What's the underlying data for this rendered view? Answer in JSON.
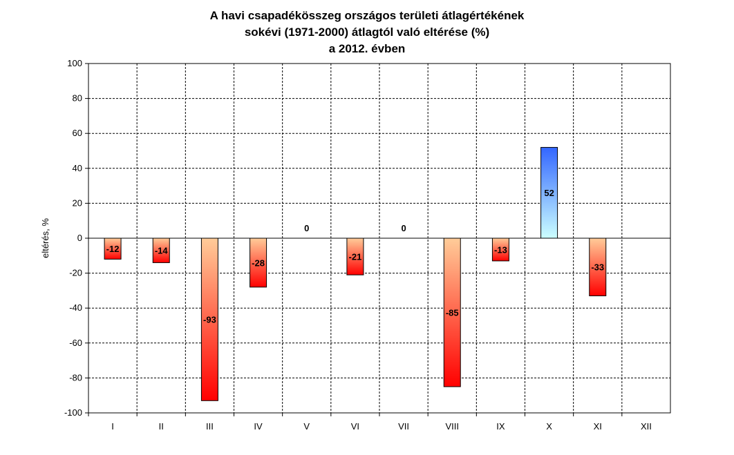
{
  "chart_data": {
    "type": "bar",
    "title": [
      "A havi csapadékösszeg országos területi átlagértékének",
      "sokévi (1971-2000) átlagtól való eltérése (%)",
      "a 2012. évben"
    ],
    "xlabel": "",
    "ylabel": "eltérés, %",
    "ylim": [
      -100,
      100
    ],
    "yticks": [
      100,
      80,
      60,
      40,
      20,
      0,
      -20,
      -40,
      -60,
      -80,
      -100
    ],
    "categories": [
      "I",
      "II",
      "III",
      "IV",
      "V",
      "VI",
      "VII",
      "VIII",
      "IX",
      "X",
      "XI",
      "XII"
    ],
    "values": [
      -12,
      -14,
      -93,
      -28,
      0,
      -21,
      0,
      -85,
      -13,
      52,
      -33,
      null
    ],
    "grid": true,
    "colors": {
      "negative_top": "#ffcc99",
      "negative_bottom": "#ff0000",
      "positive_top": "#3366ff",
      "positive_bottom": "#ccffff"
    }
  }
}
